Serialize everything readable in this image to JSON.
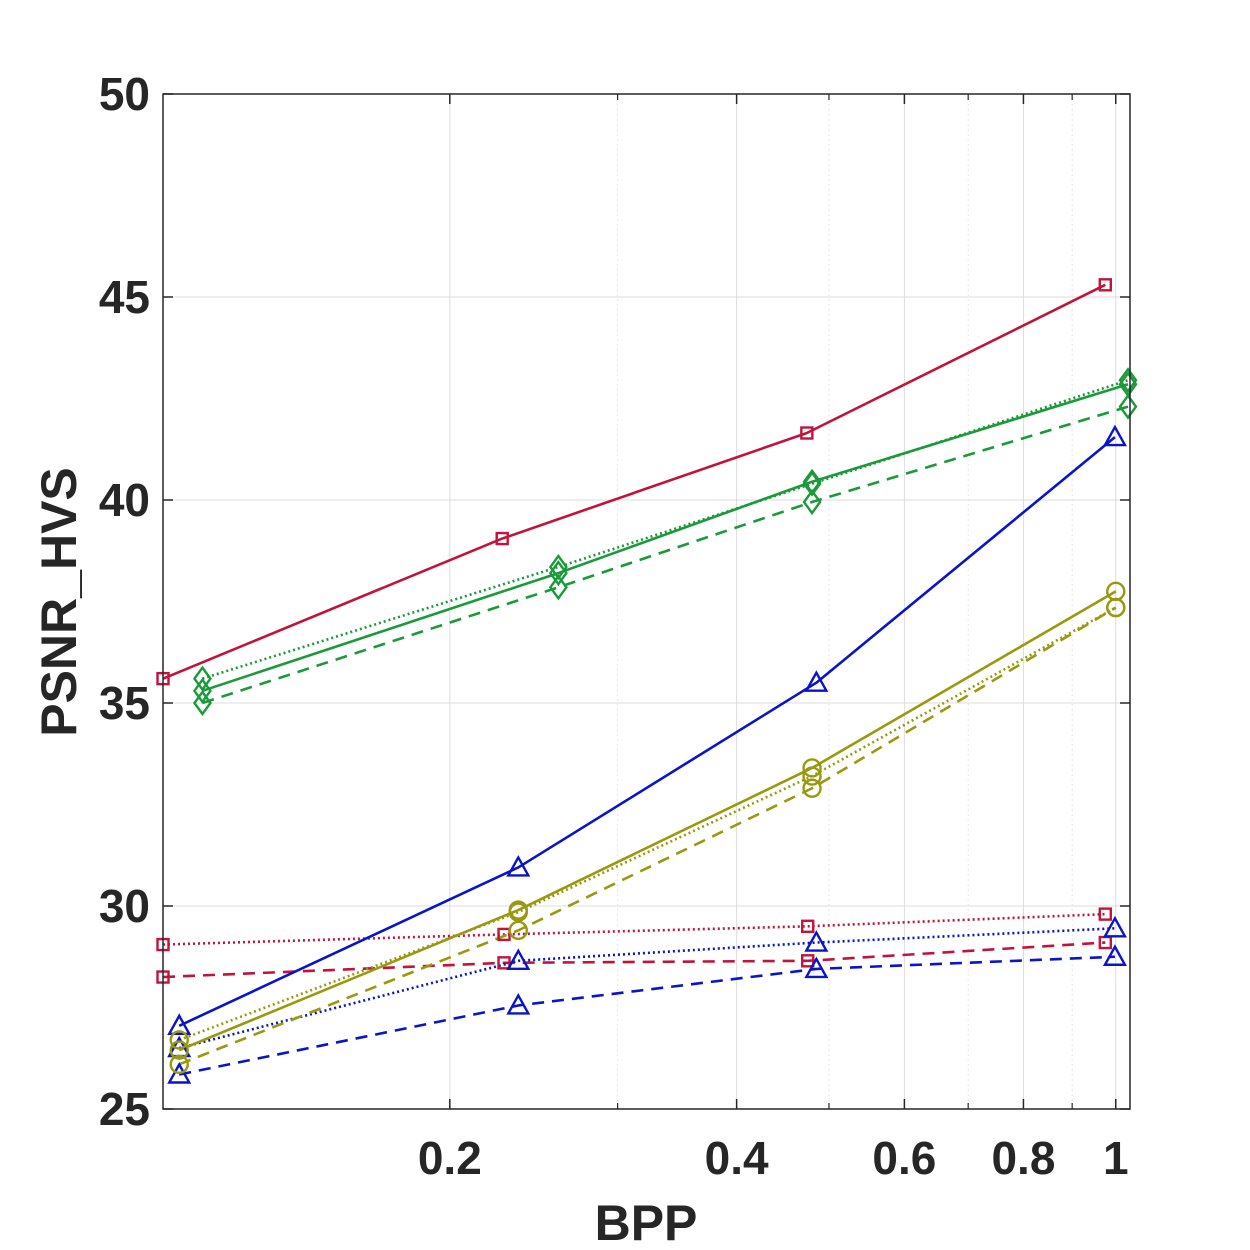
{
  "chart_data": {
    "type": "line",
    "xscale": "log",
    "xlabel": "BPP",
    "ylabel": "PSNR_HVS",
    "xlim": [
      0.1,
      1.035
    ],
    "ylim": [
      25,
      50
    ],
    "xticks": [
      0.2,
      0.4,
      0.6,
      0.8,
      1
    ],
    "xtick_labels": [
      "0.2",
      "0.4",
      "0.6",
      "0.8",
      "1"
    ],
    "yticks": [
      25,
      30,
      35,
      40,
      45,
      50
    ],
    "ytick_labels": [
      "25",
      "30",
      "35",
      "40",
      "45",
      "50"
    ],
    "grid": true,
    "series": [
      {
        "name": "red-solid",
        "color": "#c0143c",
        "dash": "solid",
        "marker": "square",
        "x": [
          0.1,
          0.227,
          0.474,
          0.975
        ],
        "y": [
          35.6,
          39.05,
          41.65,
          45.3
        ]
      },
      {
        "name": "red-dotted",
        "color": "#c0143c",
        "dash": "dotted",
        "marker": "square",
        "x": [
          0.1,
          0.228,
          0.475,
          0.975
        ],
        "y": [
          29.05,
          29.3,
          29.5,
          29.8
        ]
      },
      {
        "name": "red-dashed",
        "color": "#c0143c",
        "dash": "dashed",
        "marker": "square",
        "x": [
          0.1,
          0.228,
          0.475,
          0.975
        ],
        "y": [
          28.25,
          28.6,
          28.65,
          29.1
        ]
      },
      {
        "name": "green-solid",
        "color": "#1a9a3a",
        "dash": "solid",
        "marker": "diamond",
        "x": [
          0.11,
          0.26,
          0.48,
          1.03
        ],
        "y": [
          35.3,
          38.2,
          40.45,
          42.85
        ]
      },
      {
        "name": "green-dotted",
        "color": "#1a9a3a",
        "dash": "dotted",
        "marker": "diamond",
        "x": [
          0.11,
          0.26,
          0.48,
          1.03
        ],
        "y": [
          35.6,
          38.35,
          40.4,
          42.95
        ]
      },
      {
        "name": "green-dashed",
        "color": "#1a9a3a",
        "dash": "dashed",
        "marker": "diamond",
        "x": [
          0.11,
          0.26,
          0.48,
          1.03
        ],
        "y": [
          35.0,
          37.85,
          39.95,
          42.3
        ]
      },
      {
        "name": "blue-solid",
        "color": "#0a14c8",
        "dash": "solid",
        "marker": "triangle",
        "x": [
          0.104,
          0.236,
          0.485,
          0.998
        ],
        "y": [
          27.05,
          30.95,
          35.5,
          41.55
        ]
      },
      {
        "name": "blue-dotted",
        "color": "#0a14c8",
        "dash": "dotted",
        "marker": "triangle",
        "x": [
          0.104,
          0.236,
          0.485,
          0.998
        ],
        "y": [
          26.5,
          28.65,
          29.1,
          29.45
        ]
      },
      {
        "name": "blue-dashed",
        "color": "#0a14c8",
        "dash": "dashed",
        "marker": "triangle",
        "x": [
          0.104,
          0.236,
          0.485,
          0.998
        ],
        "y": [
          25.85,
          27.55,
          28.45,
          28.75
        ]
      },
      {
        "name": "olive-solid",
        "color": "#999910",
        "dash": "solid",
        "marker": "circle",
        "x": [
          0.104,
          0.236,
          0.48,
          1.0
        ],
        "y": [
          26.45,
          29.9,
          33.4,
          37.75
        ]
      },
      {
        "name": "olive-dotted",
        "color": "#999910",
        "dash": "dotted",
        "marker": "circle",
        "x": [
          0.104,
          0.236,
          0.48,
          1.0
        ],
        "y": [
          26.7,
          29.85,
          33.2,
          37.35
        ]
      },
      {
        "name": "olive-dashed",
        "color": "#999910",
        "dash": "dashed",
        "marker": "circle",
        "x": [
          0.104,
          0.236,
          0.48,
          1.0
        ],
        "y": [
          26.1,
          29.4,
          32.9,
          37.35
        ]
      }
    ]
  }
}
